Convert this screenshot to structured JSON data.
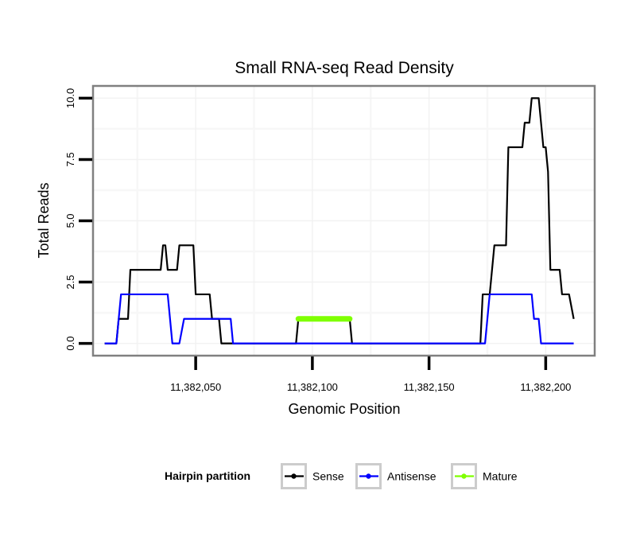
{
  "chart_data": {
    "type": "line",
    "title": "Small RNA-seq Read Density",
    "xlabel": "Genomic Position",
    "ylabel": "Total Reads",
    "xlim": [
      11382006,
      11382221
    ],
    "ylim": [
      -0.5,
      10.5
    ],
    "grid": true,
    "x_ticks": [
      11382050,
      11382100,
      11382150,
      11382200
    ],
    "x_tick_labels": [
      "11,382,050",
      "11,382,100",
      "11,382,150",
      "11,382,200"
    ],
    "y_ticks": [
      0,
      2.5,
      5,
      7.5,
      10
    ],
    "y_tick_labels": [
      "0.0",
      "2.5",
      "5.0",
      "7.5",
      "10.0"
    ],
    "legend": {
      "title": "Hairpin partition",
      "position": "bottom",
      "entries": [
        "Sense",
        "Antisense",
        "Mature"
      ]
    },
    "series": [
      {
        "name": "Sense",
        "color": "#000000",
        "x": [
          11382011,
          11382016,
          11382017,
          11382021,
          11382022,
          11382035,
          11382036,
          11382037,
          11382038,
          11382042,
          11382043,
          11382049,
          11382050,
          11382056,
          11382057,
          11382060,
          11382061,
          11382093,
          11382094,
          11382116,
          11382117,
          11382172,
          11382173,
          11382176,
          11382178,
          11382183,
          11382184,
          11382190,
          11382191,
          11382193,
          11382194,
          11382197,
          11382199,
          11382200,
          11382201,
          11382202,
          11382206,
          11382207,
          11382210,
          11382212
        ],
        "y": [
          0,
          0,
          1,
          1,
          3,
          3,
          4,
          4,
          3,
          3,
          4,
          4,
          2,
          2,
          1,
          1,
          0,
          0,
          1,
          1,
          0,
          0,
          2,
          2,
          4,
          4,
          8,
          8,
          9,
          9,
          10,
          10,
          8,
          8,
          7,
          3,
          3,
          2,
          2,
          1
        ]
      },
      {
        "name": "Antisense",
        "color": "#0000ff",
        "x": [
          11382011,
          11382016,
          11382018,
          11382038,
          11382040,
          11382043,
          11382045,
          11382065,
          11382066,
          11382174,
          11382175,
          11382176,
          11382194,
          11382195,
          11382197,
          11382198,
          11382212
        ],
        "y": [
          0,
          0,
          2,
          2,
          0,
          0,
          1,
          1,
          0,
          0,
          1,
          2,
          2,
          1,
          1,
          0,
          0
        ]
      },
      {
        "name": "Mature",
        "color": "#7fff00",
        "x": [
          11382094,
          11382116
        ],
        "y": [
          1,
          1
        ]
      }
    ]
  }
}
